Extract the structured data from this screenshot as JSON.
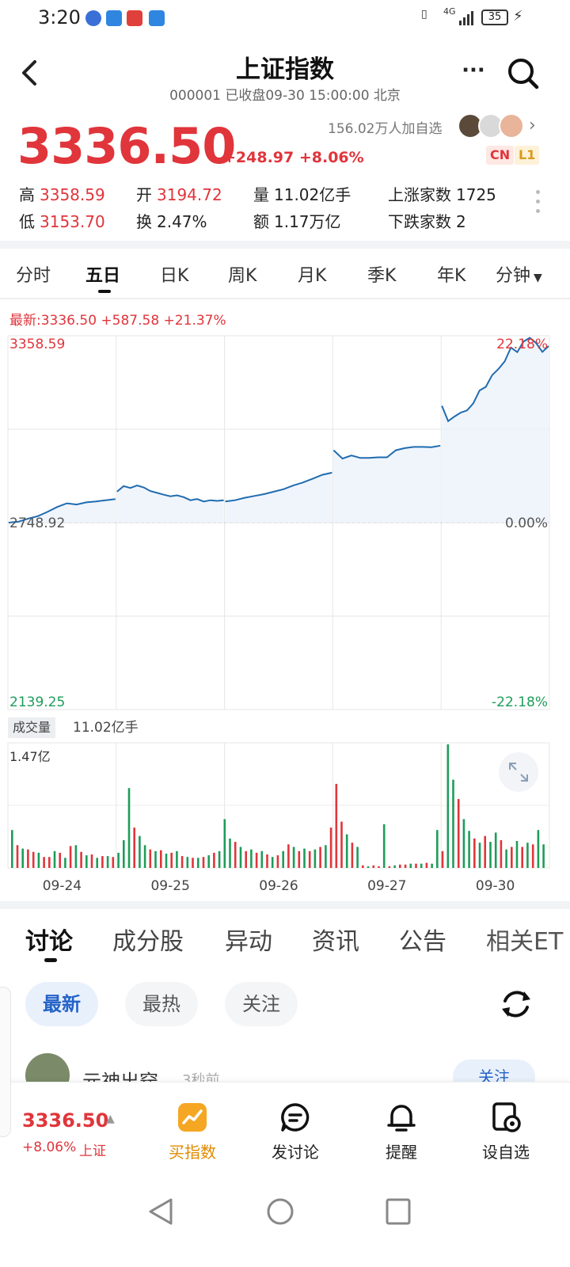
{
  "status": {
    "time": "3:20",
    "battery": "35",
    "signal": "4G"
  },
  "header": {
    "title": "上证指数",
    "subtitle": "000001 已收盘09-30 15:00:00 北京"
  },
  "quote": {
    "price": "3336.50",
    "change": "+248.97 +8.06%",
    "watchers": "156.02万人加自选",
    "tags": [
      "CN",
      "L1"
    ],
    "stats": {
      "high_label": "高",
      "high": "3358.59",
      "open_label": "开",
      "open": "3194.72",
      "volume_label": "量",
      "volume": "11.02亿手",
      "advancers_label": "上涨家数",
      "advancers": "1725",
      "low_label": "低",
      "low": "3153.70",
      "turnover_label": "换",
      "turnover": "2.47%",
      "amount_label": "额",
      "amount": "1.17万亿",
      "decliners_label": "下跌家数",
      "decliners": "2"
    }
  },
  "chart_tabs": [
    "分时",
    "五日",
    "日K",
    "周K",
    "月K",
    "季K",
    "年K",
    "分钟"
  ],
  "chart_tabs_active": "五日",
  "latest": "最新:3336.50  +587.58  +21.37%",
  "volume_label": "成交量",
  "volume_total": "11.02亿手",
  "volume_max": "1.47亿",
  "chart_data": {
    "type": "line",
    "x_labels": [
      "09-24",
      "09-25",
      "09-26",
      "09-27",
      "09-30"
    ],
    "y_labels_left": [
      "3358.59",
      "2748.92",
      "2139.25"
    ],
    "y_labels_right": [
      "22.18%",
      "0.00%",
      "-22.18%"
    ],
    "ylim": [
      2139.25,
      3358.59
    ],
    "base": 2748.92,
    "series": [
      {
        "day": "09-24",
        "values": [
          2748.9,
          2752,
          2762,
          2770,
          2784,
          2800,
          2812,
          2808,
          2815,
          2818,
          2822,
          2826
        ]
      },
      {
        "day": "09-25",
        "values": [
          2850,
          2868,
          2862,
          2870,
          2864,
          2852,
          2846,
          2840,
          2835,
          2838,
          2832,
          2822,
          2826,
          2818,
          2822,
          2820,
          2822
        ]
      },
      {
        "day": "09-26",
        "values": [
          2818,
          2822,
          2830,
          2836,
          2842,
          2850,
          2858,
          2870,
          2880,
          2892,
          2905,
          2912
        ]
      },
      {
        "day": "09-27",
        "values": [
          2985,
          2958,
          2968,
          2960,
          2960,
          2962,
          2962,
          2985,
          2992,
          2996,
          2996,
          2995,
          3000
        ]
      },
      {
        "day": "09-30",
        "values": [
          3130,
          3080,
          3095,
          3108,
          3115,
          3138,
          3180,
          3192,
          3230,
          3250,
          3275,
          3320,
          3305,
          3340,
          3352,
          3335,
          3306,
          3325
        ]
      }
    ],
    "volume": {
      "unit": "亿",
      "max": 1.47,
      "colors": [
        "#e0353b",
        "#1e9c5a"
      ],
      "bars": [
        [
          0.45,
          1
        ],
        [
          0.27,
          0
        ],
        [
          0.23,
          1
        ],
        [
          0.22,
          0
        ],
        [
          0.19,
          0
        ],
        [
          0.18,
          1
        ],
        [
          0.13,
          0
        ],
        [
          0.13,
          0
        ],
        [
          0.2,
          1
        ],
        [
          0.18,
          0
        ],
        [
          0.12,
          1
        ],
        [
          0.26,
          0
        ],
        [
          0.27,
          1
        ],
        [
          0.19,
          0
        ],
        [
          0.15,
          1
        ],
        [
          0.16,
          0
        ],
        [
          0.12,
          1
        ],
        [
          0.14,
          0
        ],
        [
          0.14,
          1
        ],
        [
          0.13,
          0
        ],
        [
          0.18,
          1
        ],
        [
          0.33,
          1
        ],
        [
          0.95,
          1
        ],
        [
          0.48,
          0
        ],
        [
          0.38,
          1
        ],
        [
          0.27,
          1
        ],
        [
          0.22,
          0
        ],
        [
          0.2,
          1
        ],
        [
          0.21,
          0
        ],
        [
          0.17,
          1
        ],
        [
          0.18,
          0
        ],
        [
          0.2,
          1
        ],
        [
          0.14,
          0
        ],
        [
          0.13,
          1
        ],
        [
          0.12,
          0
        ],
        [
          0.12,
          1
        ],
        [
          0.13,
          0
        ],
        [
          0.15,
          1
        ],
        [
          0.18,
          0
        ],
        [
          0.2,
          1
        ],
        [
          0.58,
          1
        ],
        [
          0.35,
          1
        ],
        [
          0.31,
          0
        ],
        [
          0.25,
          1
        ],
        [
          0.2,
          0
        ],
        [
          0.22,
          1
        ],
        [
          0.18,
          0
        ],
        [
          0.2,
          1
        ],
        [
          0.16,
          0
        ],
        [
          0.13,
          1
        ],
        [
          0.15,
          0
        ],
        [
          0.2,
          1
        ],
        [
          0.28,
          0
        ],
        [
          0.25,
          1
        ],
        [
          0.2,
          0
        ],
        [
          0.23,
          1
        ],
        [
          0.2,
          0
        ],
        [
          0.22,
          1
        ],
        [
          0.25,
          0
        ],
        [
          0.27,
          1
        ],
        [
          0.48,
          0
        ],
        [
          1.0,
          0
        ],
        [
          0.55,
          0
        ],
        [
          0.4,
          1
        ],
        [
          0.3,
          0
        ],
        [
          0.25,
          1
        ],
        [
          0.03,
          0
        ],
        [
          0.02,
          1
        ],
        [
          0.03,
          0
        ],
        [
          0.02,
          0
        ],
        [
          0.52,
          1
        ],
        [
          0.02,
          0
        ],
        [
          0.03,
          1
        ],
        [
          0.04,
          0
        ],
        [
          0.04,
          0
        ],
        [
          0.05,
          1
        ],
        [
          0.05,
          0
        ],
        [
          0.05,
          1
        ],
        [
          0.06,
          0
        ],
        [
          0.05,
          1
        ],
        [
          0.45,
          1
        ],
        [
          0.2,
          0
        ],
        [
          1.47,
          1
        ],
        [
          1.05,
          1
        ],
        [
          0.82,
          0
        ],
        [
          0.58,
          1
        ],
        [
          0.44,
          1
        ],
        [
          0.35,
          0
        ],
        [
          0.3,
          1
        ],
        [
          0.38,
          0
        ],
        [
          0.31,
          1
        ],
        [
          0.42,
          1
        ],
        [
          0.33,
          0
        ],
        [
          0.22,
          1
        ],
        [
          0.25,
          0
        ],
        [
          0.32,
          1
        ],
        [
          0.25,
          0
        ],
        [
          0.3,
          1
        ],
        [
          0.28,
          0
        ],
        [
          0.45,
          1
        ],
        [
          0.28,
          1
        ]
      ]
    }
  },
  "discussion": {
    "tabs": [
      "讨论",
      "成分股",
      "异动",
      "资讯",
      "公告",
      "相关ET"
    ],
    "chips": [
      "最新",
      "最热",
      "关注"
    ],
    "post_user": "元神出窍",
    "post_time": "3秒前",
    "follow": "关注"
  },
  "bottom_bar": {
    "price": "3336.50",
    "change": "+8.06%",
    "name": "上证",
    "items": [
      "买指数",
      "发讨论",
      "提醒",
      "设自选"
    ]
  }
}
